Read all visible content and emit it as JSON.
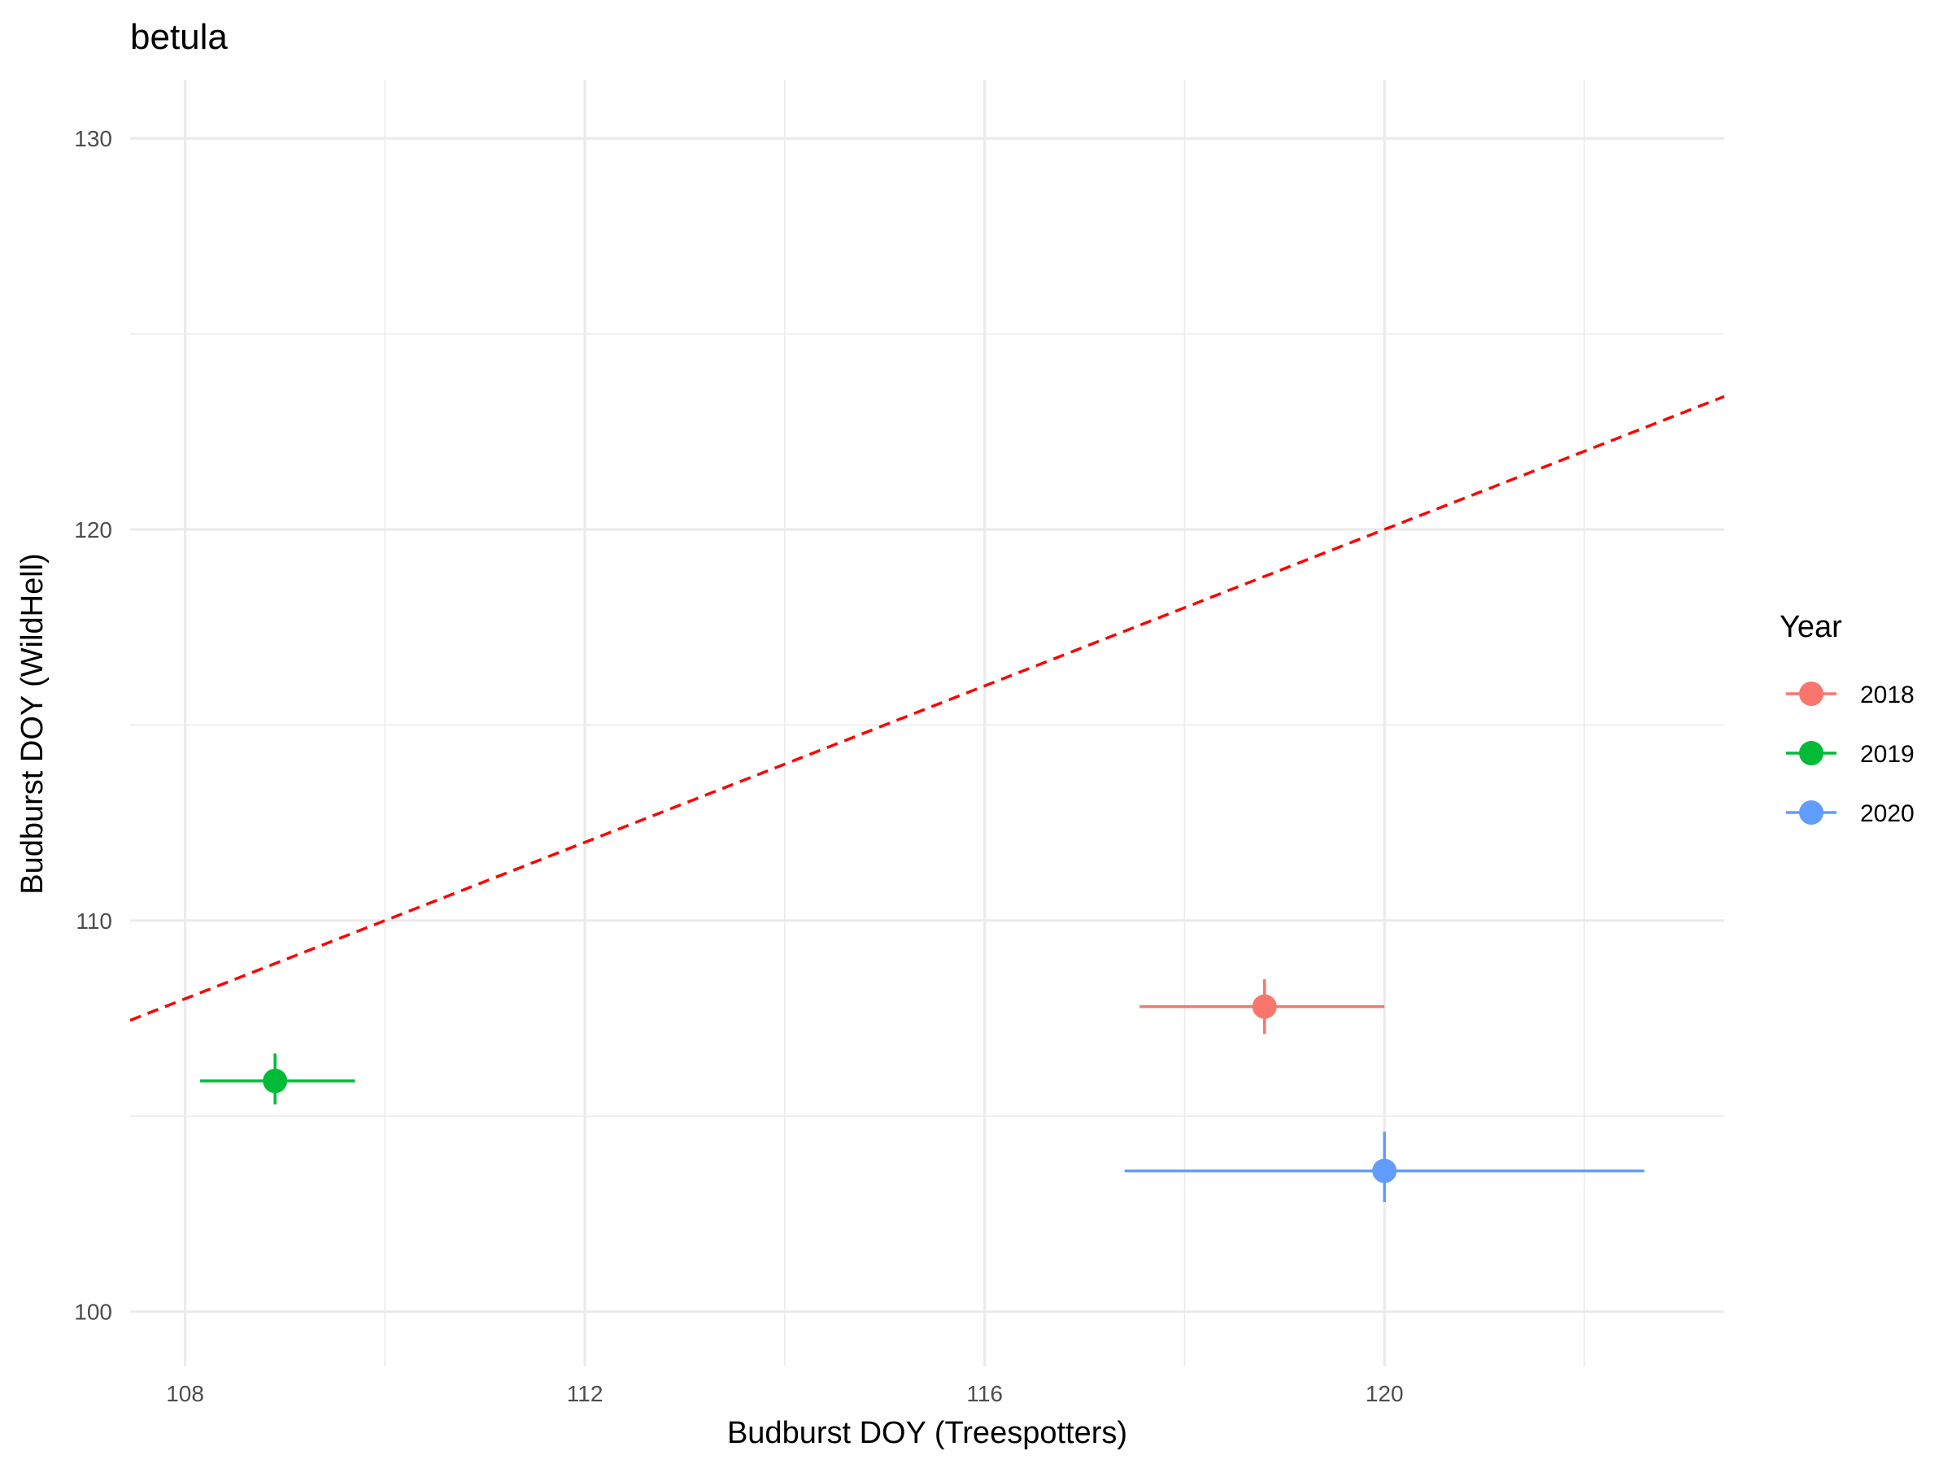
{
  "chart_data": {
    "type": "scatter",
    "title": "betula",
    "xlabel": "Budburst DOY (Treespotters)",
    "ylabel": "Budburst DOY (WildHell)",
    "xlim": [
      107.45,
      123.4
    ],
    "ylim": [
      98.6,
      131.5
    ],
    "x_ticks": [
      108,
      112,
      116,
      120
    ],
    "x_tick_labels": [
      "108",
      "112",
      "116",
      "120"
    ],
    "x_minor_ticks": [
      110,
      114,
      118,
      122
    ],
    "y_ticks": [
      100,
      110,
      120,
      130
    ],
    "y_tick_labels": [
      "100",
      "110",
      "120",
      "130"
    ],
    "y_minor_ticks": [
      105,
      115,
      125
    ],
    "grid": true,
    "reference_line": {
      "type": "identity",
      "slope": 1,
      "intercept": 0,
      "color": "#ff0000",
      "style": "dashed"
    },
    "legend": {
      "title": "Year",
      "position": "right",
      "entries": [
        "2018",
        "2019",
        "2020"
      ]
    },
    "series": [
      {
        "name": "2018",
        "color": "#f8766d",
        "x": 118.8,
        "y": 107.8,
        "x_err": [
          117.55,
          120.0
        ],
        "y_err": [
          107.1,
          108.5
        ]
      },
      {
        "name": "2019",
        "color": "#00ba38",
        "x": 108.9,
        "y": 105.9,
        "x_err": [
          108.15,
          109.7
        ],
        "y_err": [
          105.3,
          106.6
        ]
      },
      {
        "name": "2020",
        "color": "#619cff",
        "x": 120.0,
        "y": 103.6,
        "x_err": [
          117.4,
          122.6
        ],
        "y_err": [
          102.8,
          104.6
        ]
      }
    ]
  }
}
